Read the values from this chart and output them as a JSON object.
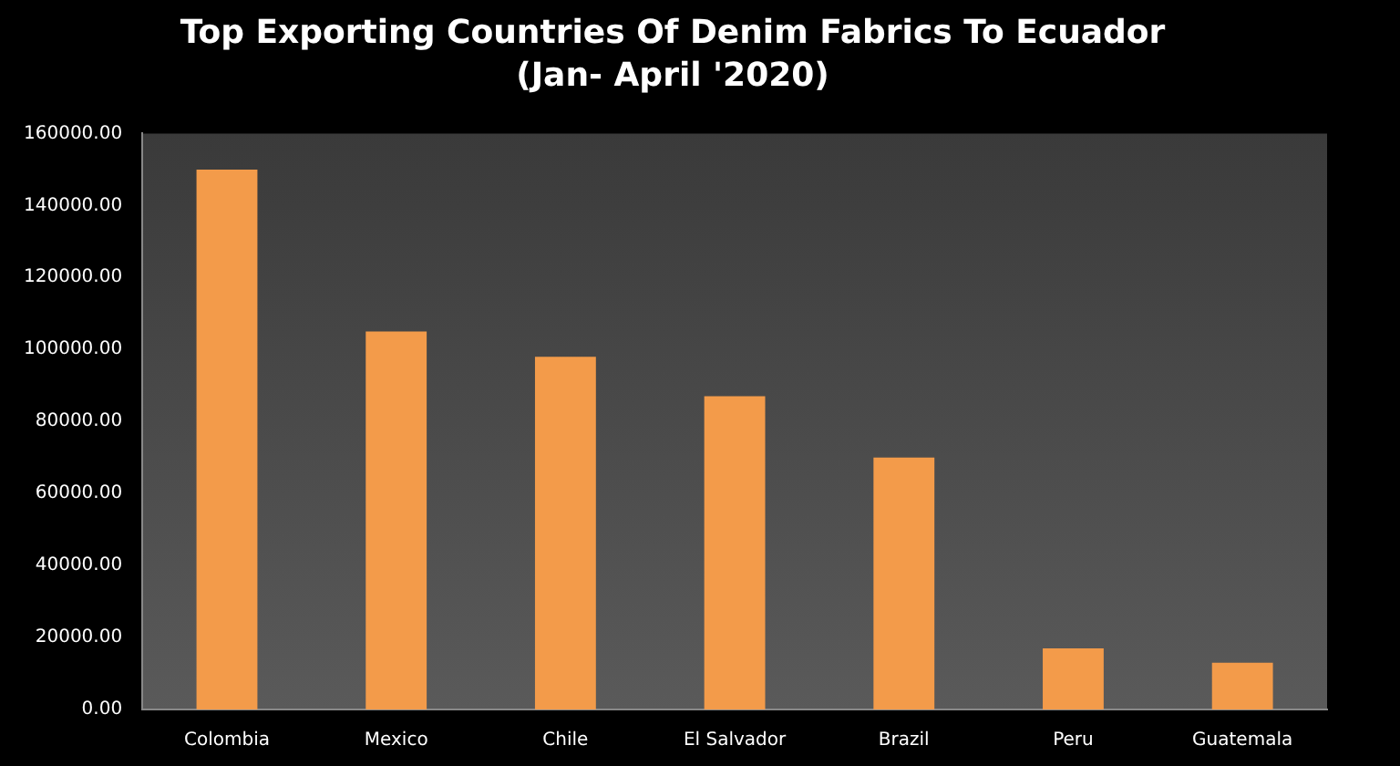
{
  "chart_data": {
    "type": "bar",
    "title": "Top Exporting Countries Of Denim Fabrics To Ecuador",
    "subtitle": "(Jan- April '2020)",
    "categories": [
      "Colombia",
      "Mexico",
      "Chile",
      "El Salvador",
      "Brazil",
      "Peru",
      "Guatemala"
    ],
    "values": [
      150000,
      105000,
      98000,
      87000,
      70000,
      17000,
      13000
    ],
    "color": "#f39b4a",
    "ylim": [
      0,
      160000
    ],
    "yticks": [
      {
        "value": 0,
        "label": "0.00"
      },
      {
        "value": 20000,
        "label": "20000.00"
      },
      {
        "value": 40000,
        "label": "40000.00"
      },
      {
        "value": 60000,
        "label": "60000.00"
      },
      {
        "value": 80000,
        "label": "80000.00"
      },
      {
        "value": 100000,
        "label": "100000.00"
      },
      {
        "value": 120000,
        "label": "120000.00"
      },
      {
        "value": 140000,
        "label": "140000.00"
      },
      {
        "value": 160000,
        "label": "160000.00"
      }
    ],
    "grid": false,
    "legend": false
  }
}
